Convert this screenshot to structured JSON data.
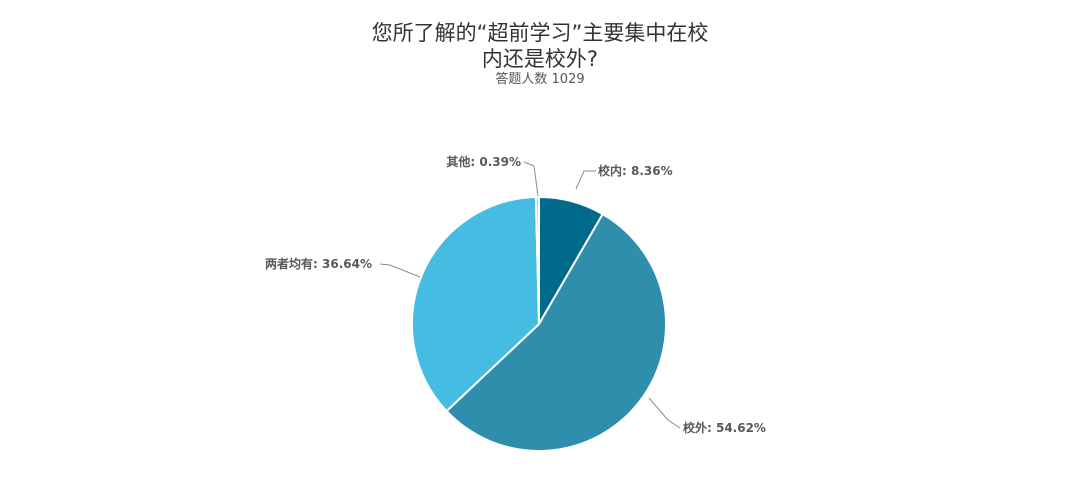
{
  "chart_data": {
    "type": "pie",
    "title_lines": [
      "您所了解的“超前学习”主要集中在校",
      "内还是校外?"
    ],
    "subtitle": "答题人数 1029",
    "slices": [
      {
        "label": "校内",
        "value": 8.36,
        "display": "校内: 8.36%",
        "color": "#006a8c"
      },
      {
        "label": "校外",
        "value": 54.62,
        "display": "校外: 54.62%",
        "color": "#2e8eab"
      },
      {
        "label": "两者均有",
        "value": 36.64,
        "display": "两者均有: 36.64%",
        "color": "#45bde2"
      },
      {
        "label": "其他",
        "value": 0.39,
        "display": "其他: 0.39%",
        "color": "#9bd8ee"
      }
    ]
  }
}
